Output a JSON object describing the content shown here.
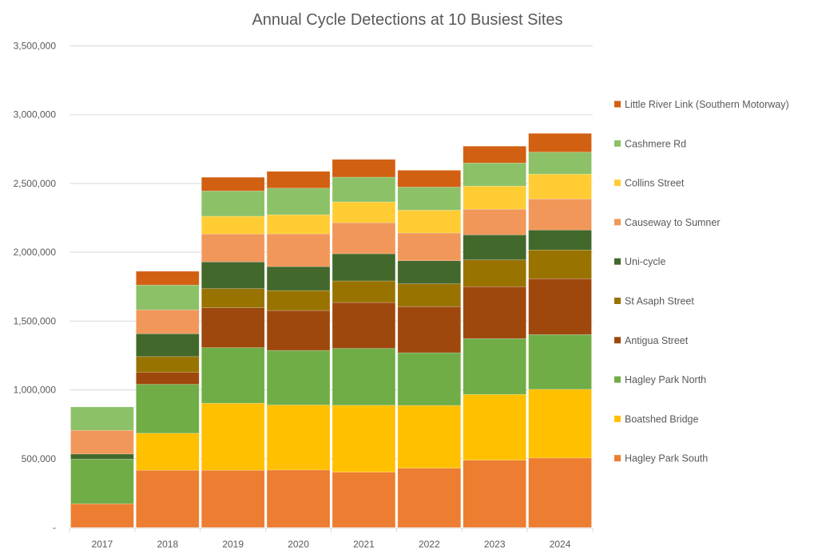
{
  "chart_data": {
    "type": "bar",
    "stacked": true,
    "title": "Annual Cycle Detections at 10 Busiest Sites",
    "xlabel": "",
    "ylabel": "",
    "ylim": [
      0,
      3500000
    ],
    "yticks": [
      0,
      500000,
      1000000,
      1500000,
      2000000,
      2500000,
      3000000,
      3500000
    ],
    "ytick_labels": [
      "-",
      "500,000",
      "1,000,000",
      "1,500,000",
      "2,000,000",
      "2,500,000",
      "3,000,000",
      "3,500,000"
    ],
    "grid": true,
    "legend_position": "right",
    "categories": [
      "2017",
      "2018",
      "2019",
      "2020",
      "2021",
      "2022",
      "2023",
      "2024"
    ],
    "series": [
      {
        "name": "Hagley Park South",
        "color": "#ED7D31",
        "values": [
          172000,
          416000,
          416000,
          418000,
          402000,
          431000,
          489000,
          505000
        ]
      },
      {
        "name": "Boatshed Bridge",
        "color": "#FFC000",
        "values": [
          0,
          269000,
          487000,
          472000,
          486000,
          456000,
          478000,
          499000
        ]
      },
      {
        "name": "Hagley Park North",
        "color": "#70AD47",
        "values": [
          325000,
          356000,
          404000,
          397000,
          414000,
          383000,
          406000,
          398000
        ]
      },
      {
        "name": "Antigua Street",
        "color": "#9E480E",
        "values": [
          0,
          87000,
          290000,
          290000,
          333000,
          335000,
          377000,
          406000
        ]
      },
      {
        "name": "St Asaph Street",
        "color": "#997300",
        "values": [
          0,
          114000,
          139000,
          145000,
          157000,
          166000,
          195000,
          209000
        ]
      },
      {
        "name": "Uni-cycle",
        "color": "#43682B",
        "values": [
          37000,
          166000,
          194000,
          174000,
          197000,
          168000,
          182000,
          145000
        ]
      },
      {
        "name": "Causeway to Sumner",
        "color": "#F1975A",
        "values": [
          172000,
          174000,
          203000,
          238000,
          226000,
          201000,
          186000,
          226000
        ]
      },
      {
        "name": "Collins Street",
        "color": "#FFCD33",
        "values": [
          0,
          0,
          129000,
          139000,
          151000,
          166000,
          168000,
          180000
        ]
      },
      {
        "name": "Cashmere Rd",
        "color": "#8CC168",
        "values": [
          170000,
          180000,
          184000,
          193000,
          180000,
          168000,
          168000,
          160000
        ]
      },
      {
        "name": "Little River Link (Southern Motorway)",
        "color": "#D26012",
        "values": [
          0,
          100000,
          99000,
          122000,
          129000,
          122000,
          122000,
          136000
        ]
      }
    ],
    "legend_order": [
      "Little River Link (Southern Motorway)",
      "Cashmere Rd",
      "Collins Street",
      "Causeway to Sumner",
      "Uni-cycle",
      "St Asaph Street",
      "Antigua Street",
      "Hagley Park North",
      "Boatshed Bridge",
      "Hagley Park South"
    ]
  }
}
